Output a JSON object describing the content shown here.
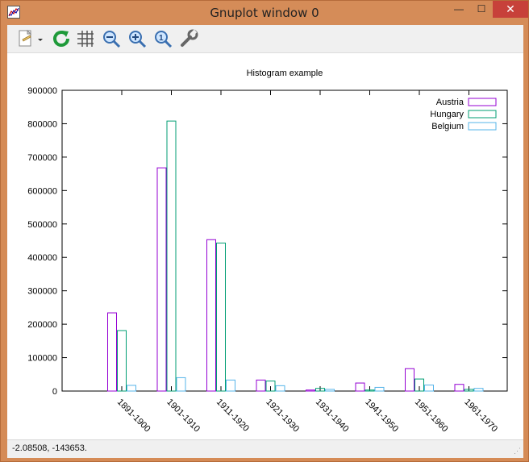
{
  "window": {
    "title": "Gnuplot window 0",
    "minimize_glyph": "—",
    "maximize_glyph": "☐",
    "close_glyph": "✕"
  },
  "toolbar": {
    "icons": [
      "copy-print-icon",
      "dropdown-arrow-icon",
      "replot-icon",
      "grid-icon",
      "zoom-previous-icon",
      "zoom-next-icon",
      "autoscale-icon",
      "options-wrench-icon"
    ]
  },
  "status": {
    "text": "-2.08508, -143653."
  },
  "colors": {
    "austria": "#9400d3",
    "hungary": "#009e73",
    "belgium": "#56b4e9"
  },
  "chart_data": {
    "type": "bar",
    "title": "Histogram example",
    "xlabel": "",
    "ylabel": "",
    "ylim": [
      0,
      900000
    ],
    "yticks": [
      0,
      100000,
      200000,
      300000,
      400000,
      500000,
      600000,
      700000,
      800000,
      900000
    ],
    "categories": [
      "1891-1900",
      "1901-1910",
      "1911-1920",
      "1921-1930",
      "1931-1940",
      "1941-1950",
      "1951-1960",
      "1961-1970"
    ],
    "series": [
      {
        "name": "Austria",
        "values": [
          234000,
          668000,
          453000,
          33000,
          3000,
          24000,
          67000,
          20000
        ]
      },
      {
        "name": "Hungary",
        "values": [
          181000,
          808000,
          443000,
          30000,
          8000,
          3000,
          36000,
          5000
        ]
      },
      {
        "name": "Belgium",
        "values": [
          17000,
          40000,
          33000,
          16000,
          5000,
          11000,
          18000,
          8000
        ]
      }
    ],
    "legend_position": "top-right",
    "grid": false
  }
}
